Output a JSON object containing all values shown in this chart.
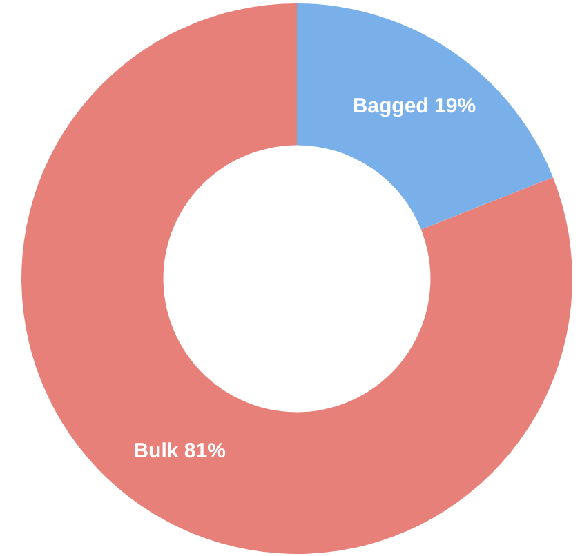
{
  "chart_data": {
    "type": "donut",
    "categories": [
      "Bagged",
      "Bulk"
    ],
    "values": [
      19,
      81
    ],
    "value_labels": [
      "19%",
      "81%"
    ],
    "colors": [
      "#7ab0ea",
      "#e8807a"
    ],
    "legend": false
  }
}
